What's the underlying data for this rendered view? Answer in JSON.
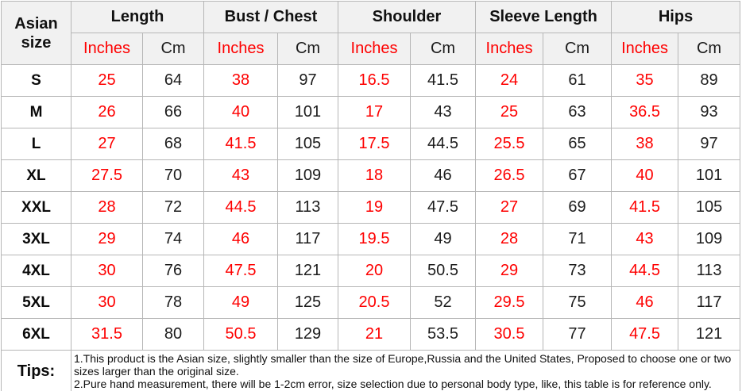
{
  "colors": {
    "header_bg": "#f1f1f1",
    "border": "#b6b6b6",
    "accent_red": "#fe0000",
    "text": "#1a1a1a"
  },
  "table": {
    "corner_header": "Asian size",
    "groups": [
      {
        "label": "Length"
      },
      {
        "label": "Bust / Chest"
      },
      {
        "label": "Shoulder"
      },
      {
        "label": "Sleeve Length"
      },
      {
        "label": "Hips"
      }
    ],
    "unit_inches": "Inches",
    "unit_cm": "Cm",
    "rows": [
      {
        "size": "S",
        "values": [
          "25",
          "64",
          "38",
          "97",
          "16.5",
          "41.5",
          "24",
          "61",
          "35",
          "89"
        ]
      },
      {
        "size": "M",
        "values": [
          "26",
          "66",
          "40",
          "101",
          "17",
          "43",
          "25",
          "63",
          "36.5",
          "93"
        ]
      },
      {
        "size": "L",
        "values": [
          "27",
          "68",
          "41.5",
          "105",
          "17.5",
          "44.5",
          "25.5",
          "65",
          "38",
          "97"
        ]
      },
      {
        "size": "XL",
        "values": [
          "27.5",
          "70",
          "43",
          "109",
          "18",
          "46",
          "26.5",
          "67",
          "40",
          "101"
        ]
      },
      {
        "size": "XXL",
        "values": [
          "28",
          "72",
          "44.5",
          "113",
          "19",
          "47.5",
          "27",
          "69",
          "41.5",
          "105"
        ]
      },
      {
        "size": "3XL",
        "values": [
          "29",
          "74",
          "46",
          "117",
          "19.5",
          "49",
          "28",
          "71",
          "43",
          "109"
        ]
      },
      {
        "size": "4XL",
        "values": [
          "30",
          "76",
          "47.5",
          "121",
          "20",
          "50.5",
          "29",
          "73",
          "44.5",
          "113"
        ]
      },
      {
        "size": "5XL",
        "values": [
          "30",
          "78",
          "49",
          "125",
          "20.5",
          "52",
          "29.5",
          "75",
          "46",
          "117"
        ]
      },
      {
        "size": "6XL",
        "values": [
          "31.5",
          "80",
          "50.5",
          "129",
          "21",
          "53.5",
          "30.5",
          "77",
          "47.5",
          "121"
        ]
      }
    ],
    "tips": {
      "label": "Tips:",
      "lines": [
        "1.This product is the Asian size, slightly smaller than the size of Europe,Russia and the United States, Proposed to choose one or two sizes larger than the original size.",
        "2.Pure hand measurement, there will be 1-2cm error, size selection due to personal body type, like, this table is for reference only."
      ]
    }
  },
  "chart_data": {
    "type": "table",
    "columns": [
      "Asian size",
      "Length (Inches)",
      "Length (Cm)",
      "Bust / Chest (Inches)",
      "Bust / Chest (Cm)",
      "Shoulder (Inches)",
      "Shoulder (Cm)",
      "Sleeve Length (Inches)",
      "Sleeve Length (Cm)",
      "Hips (Inches)",
      "Hips (Cm)"
    ],
    "rows": [
      [
        "S",
        25,
        64,
        38,
        97,
        16.5,
        41.5,
        24,
        61,
        35,
        89
      ],
      [
        "M",
        26,
        66,
        40,
        101,
        17,
        43,
        25,
        63,
        36.5,
        93
      ],
      [
        "L",
        27,
        68,
        41.5,
        105,
        17.5,
        44.5,
        25.5,
        65,
        38,
        97
      ],
      [
        "XL",
        27.5,
        70,
        43,
        109,
        18,
        46,
        26.5,
        67,
        40,
        101
      ],
      [
        "XXL",
        28,
        72,
        44.5,
        113,
        19,
        47.5,
        27,
        69,
        41.5,
        105
      ],
      [
        "3XL",
        29,
        74,
        46,
        117,
        19.5,
        49,
        28,
        71,
        43,
        109
      ],
      [
        "4XL",
        30,
        76,
        47.5,
        121,
        20,
        50.5,
        29,
        73,
        44.5,
        113
      ],
      [
        "5XL",
        30,
        78,
        49,
        125,
        20.5,
        52,
        29.5,
        75,
        46,
        117
      ],
      [
        "6XL",
        31.5,
        80,
        50.5,
        129,
        21,
        53.5,
        30.5,
        77,
        47.5,
        121
      ]
    ],
    "notes": [
      "1.This product is the Asian size, slightly smaller than the size of Europe,Russia and the United States, Proposed to choose one or two sizes larger than the original size.",
      "2.Pure hand measurement, there will be 1-2cm error, size selection due to personal body type, like, this table is for reference only."
    ],
    "layout_hints": {
      "inches_columns_color": "#fe0000",
      "cm_columns_color": "#1c1c1c",
      "header_background": "#f1f1f1",
      "grid": true
    }
  }
}
